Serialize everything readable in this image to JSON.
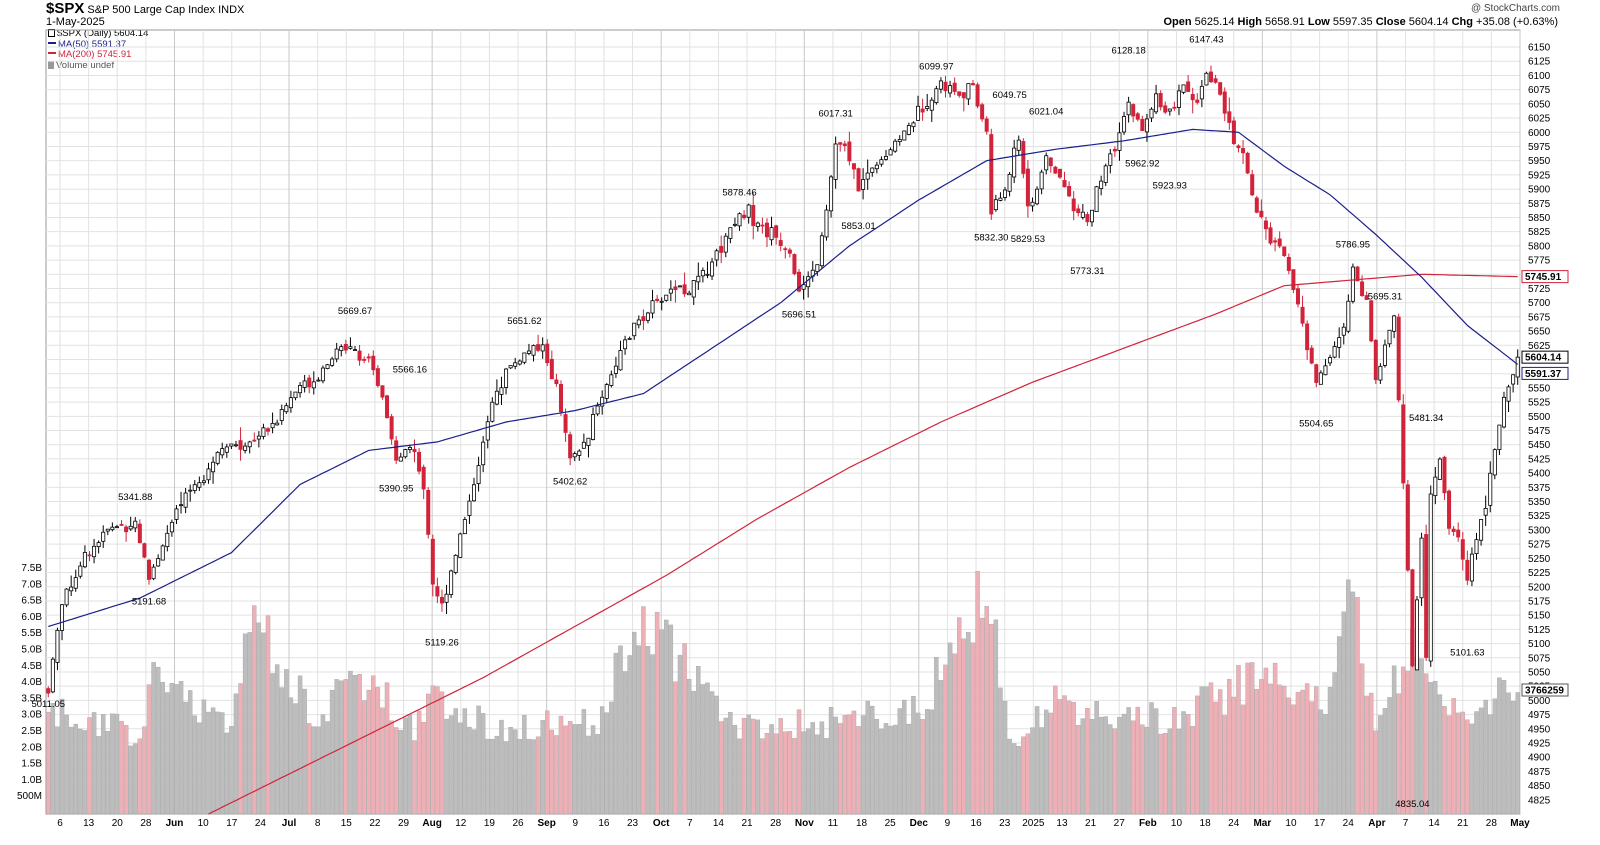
{
  "header": {
    "symbol": "$SPX",
    "name": "S&P 500 Large Cap Index",
    "exchange": "INDX",
    "date": "1-May-2025",
    "watermark": "@ StockCharts.com",
    "ohlc": {
      "open_label": "Open",
      "open": "5625.14",
      "high_label": "High",
      "high": "5658.91",
      "low_label": "Low",
      "low": "5597.35",
      "close_label": "Close",
      "close": "5604.14",
      "chg_label": "Chg",
      "chg": "+35.08 (+0.63%)"
    }
  },
  "legend": {
    "price": "$SPX (Daily) 5604.14",
    "ma50": "MA(50) 5591.37",
    "ma200": "MA(200) 5745.91",
    "volume": "Volume undef"
  },
  "colors": {
    "up": "#ffffff",
    "down": "#d1233a",
    "ma50": "#1b1f8a",
    "ma200": "#d1233a",
    "vol_up": "#bdbdbd",
    "vol_down": "#eeb0b7",
    "grid": "#e2e2e2"
  },
  "chart_data": {
    "type": "candlestick",
    "title": "$SPX S&P 500 Large Cap Index INDX",
    "ylim": [
      4800,
      6180
    ],
    "y_ticks": [
      4825,
      4850,
      4875,
      4900,
      4925,
      4950,
      4975,
      5000,
      5025,
      5050,
      5075,
      5100,
      5125,
      5150,
      5175,
      5200,
      5225,
      5250,
      5275,
      5300,
      5325,
      5350,
      5375,
      5400,
      5425,
      5450,
      5475,
      5500,
      5525,
      5550,
      5575,
      5600,
      5625,
      5650,
      5675,
      5700,
      5725,
      5750,
      5775,
      5800,
      5825,
      5850,
      5875,
      5900,
      5925,
      5950,
      5975,
      6000,
      6025,
      6050,
      6075,
      6100,
      6125,
      6150
    ],
    "volume_ticks": [
      "500M",
      "1.0B",
      "1.5B",
      "2.0B",
      "2.5B",
      "3.0B",
      "3.5B",
      "4.0B",
      "4.5B",
      "5.0B",
      "5.5B",
      "6.0B",
      "6.5B",
      "7.0B",
      "7.5B"
    ],
    "x_labels": [
      "6",
      "13",
      "20",
      "28",
      "Jun",
      "10",
      "17",
      "24",
      "Jul",
      "8",
      "15",
      "22",
      "29",
      "Aug",
      "12",
      "19",
      "26",
      "Sep",
      "9",
      "16",
      "23",
      "Oct",
      "7",
      "14",
      "21",
      "28",
      "Nov",
      "11",
      "18",
      "25",
      "Dec",
      "9",
      "16",
      "23",
      "2025",
      "13",
      "21",
      "27",
      "Feb",
      "10",
      "18",
      "24",
      "Mar",
      "10",
      "17",
      "24",
      "Apr",
      "7",
      "14",
      "21",
      "28",
      "May"
    ],
    "right_labels": {
      "ma200": "5745.91",
      "close": "5604.14",
      "ma50": "5591.37",
      "volume": "3766259"
    },
    "annotations": [
      {
        "text": "5011.05",
        "x": 0,
        "y": 5011.05,
        "pos": "below"
      },
      {
        "text": "5191.68",
        "x": 22,
        "y": 5191.68,
        "pos": "below"
      },
      {
        "text": "5341.88",
        "x": 19,
        "y": 5341.88,
        "pos": "above"
      },
      {
        "text": "5669.67",
        "x": 67,
        "y": 5669.67,
        "pos": "above"
      },
      {
        "text": "5566.16",
        "x": 79,
        "y": 5566.16,
        "pos": "above"
      },
      {
        "text": "5390.95",
        "x": 76,
        "y": 5390.95,
        "pos": "below"
      },
      {
        "text": "5119.26",
        "x": 86,
        "y": 5119.26,
        "pos": "below"
      },
      {
        "text": "5651.62",
        "x": 104,
        "y": 5651.62,
        "pos": "above"
      },
      {
        "text": "5402.62",
        "x": 114,
        "y": 5402.62,
        "pos": "below"
      },
      {
        "text": "5878.46",
        "x": 151,
        "y": 5878.46,
        "pos": "above"
      },
      {
        "text": "5696.51",
        "x": 164,
        "y": 5696.51,
        "pos": "below"
      },
      {
        "text": "6017.31",
        "x": 172,
        "y": 6017.31,
        "pos": "above"
      },
      {
        "text": "5853.01",
        "x": 177,
        "y": 5853.01,
        "pos": "below"
      },
      {
        "text": "6099.97",
        "x": 194,
        "y": 6099.97,
        "pos": "above"
      },
      {
        "text": "6049.75",
        "x": 210,
        "y": 6049.75,
        "pos": "above"
      },
      {
        "text": "5832.30",
        "x": 206,
        "y": 5832.3,
        "pos": "below"
      },
      {
        "text": "6021.04",
        "x": 218,
        "y": 6021.04,
        "pos": "above"
      },
      {
        "text": "5829.53",
        "x": 214,
        "y": 5829.53,
        "pos": "below"
      },
      {
        "text": "5773.31",
        "x": 227,
        "y": 5773.31,
        "pos": "below"
      },
      {
        "text": "6128.18",
        "x": 236,
        "y": 6128.18,
        "pos": "above"
      },
      {
        "text": "5962.92",
        "x": 239,
        "y": 5962.92,
        "pos": "below"
      },
      {
        "text": "5923.93",
        "x": 245,
        "y": 5923.93,
        "pos": "below"
      },
      {
        "text": "6147.43",
        "x": 253,
        "y": 6147.43,
        "pos": "above"
      },
      {
        "text": "5504.65",
        "x": 277,
        "y": 5504.65,
        "pos": "below"
      },
      {
        "text": "5786.95",
        "x": 285,
        "y": 5786.95,
        "pos": "above"
      },
      {
        "text": "5695.31",
        "x": 292,
        "y": 5695.31,
        "pos": "above"
      },
      {
        "text": "5481.34",
        "x": 301,
        "y": 5481.34,
        "pos": "above"
      },
      {
        "text": "4835.04",
        "x": 298,
        "y": 4835.04,
        "pos": "below"
      },
      {
        "text": "5101.63",
        "x": 310,
        "y": 5101.63,
        "pos": "below"
      }
    ],
    "anchors": [
      [
        0,
        5020
      ],
      [
        3,
        5175
      ],
      [
        8,
        5255
      ],
      [
        13,
        5300
      ],
      [
        19,
        5315
      ],
      [
        22,
        5215
      ],
      [
        25,
        5275
      ],
      [
        28,
        5330
      ],
      [
        31,
        5370
      ],
      [
        35,
        5410
      ],
      [
        38,
        5450
      ],
      [
        42,
        5445
      ],
      [
        46,
        5470
      ],
      [
        50,
        5495
      ],
      [
        55,
        5555
      ],
      [
        58,
        5565
      ],
      [
        62,
        5605
      ],
      [
        66,
        5630
      ],
      [
        70,
        5590
      ],
      [
        73,
        5535
      ],
      [
        76,
        5420
      ],
      [
        79,
        5450
      ],
      [
        82,
        5380
      ],
      [
        84,
        5210
      ],
      [
        86,
        5165
      ],
      [
        88,
        5230
      ],
      [
        91,
        5320
      ],
      [
        94,
        5420
      ],
      [
        97,
        5520
      ],
      [
        100,
        5580
      ],
      [
        104,
        5610
      ],
      [
        108,
        5620
      ],
      [
        111,
        5550
      ],
      [
        114,
        5420
      ],
      [
        117,
        5450
      ],
      [
        121,
        5540
      ],
      [
        125,
        5610
      ],
      [
        129,
        5670
      ],
      [
        133,
        5700
      ],
      [
        137,
        5730
      ],
      [
        140,
        5720
      ],
      [
        143,
        5750
      ],
      [
        147,
        5800
      ],
      [
        150,
        5850
      ],
      [
        153,
        5860
      ],
      [
        156,
        5830
      ],
      [
        159,
        5815
      ],
      [
        162,
        5790
      ],
      [
        164,
        5720
      ],
      [
        166,
        5735
      ],
      [
        168,
        5770
      ],
      [
        170,
        5860
      ],
      [
        172,
        5980
      ],
      [
        175,
        5960
      ],
      [
        177,
        5900
      ],
      [
        180,
        5940
      ],
      [
        183,
        5960
      ],
      [
        186,
        5990
      ],
      [
        189,
        6020
      ],
      [
        192,
        6060
      ],
      [
        195,
        6085
      ],
      [
        199,
        6070
      ],
      [
        202,
        6075
      ],
      [
        205,
        6000
      ],
      [
        206,
        5860
      ],
      [
        209,
        5900
      ],
      [
        212,
        5990
      ],
      [
        214,
        5870
      ],
      [
        216,
        5900
      ],
      [
        218,
        5950
      ],
      [
        221,
        5920
      ],
      [
        224,
        5870
      ],
      [
        227,
        5840
      ],
      [
        230,
        5920
      ],
      [
        233,
        5970
      ],
      [
        236,
        6050
      ],
      [
        239,
        6000
      ],
      [
        242,
        6060
      ],
      [
        245,
        6030
      ],
      [
        248,
        6080
      ],
      [
        251,
        6050
      ],
      [
        253,
        6100
      ],
      [
        256,
        6070
      ],
      [
        259,
        5980
      ],
      [
        261,
        5960
      ],
      [
        264,
        5860
      ],
      [
        267,
        5810
      ],
      [
        270,
        5780
      ],
      [
        273,
        5700
      ],
      [
        275,
        5620
      ],
      [
        277,
        5560
      ],
      [
        280,
        5610
      ],
      [
        283,
        5650
      ],
      [
        285,
        5760
      ],
      [
        288,
        5700
      ],
      [
        290,
        5560
      ],
      [
        292,
        5630
      ],
      [
        294,
        5670
      ],
      [
        296,
        5390
      ],
      [
        298,
        5060
      ],
      [
        300,
        5280
      ],
      [
        301,
        5070
      ],
      [
        302,
        5370
      ],
      [
        304,
        5420
      ],
      [
        306,
        5310
      ],
      [
        308,
        5280
      ],
      [
        310,
        5210
      ],
      [
        312,
        5290
      ],
      [
        314,
        5350
      ],
      [
        316,
        5450
      ],
      [
        318,
        5530
      ],
      [
        320,
        5565
      ],
      [
        321,
        5604.14
      ]
    ],
    "ma50_anchors": [
      [
        0,
        5130
      ],
      [
        20,
        5180
      ],
      [
        40,
        5260
      ],
      [
        55,
        5380
      ],
      [
        70,
        5440
      ],
      [
        85,
        5455
      ],
      [
        100,
        5490
      ],
      [
        115,
        5510
      ],
      [
        130,
        5540
      ],
      [
        145,
        5620
      ],
      [
        160,
        5700
      ],
      [
        175,
        5800
      ],
      [
        190,
        5880
      ],
      [
        205,
        5950
      ],
      [
        220,
        5970
      ],
      [
        235,
        5985
      ],
      [
        250,
        6005
      ],
      [
        260,
        6000
      ],
      [
        270,
        5940
      ],
      [
        280,
        5890
      ],
      [
        290,
        5820
      ],
      [
        300,
        5745
      ],
      [
        310,
        5660
      ],
      [
        321,
        5591.37
      ]
    ],
    "ma200_anchors": [
      [
        35,
        4800
      ],
      [
        55,
        4880
      ],
      [
        75,
        4960
      ],
      [
        95,
        5040
      ],
      [
        115,
        5130
      ],
      [
        135,
        5220
      ],
      [
        155,
        5320
      ],
      [
        175,
        5410
      ],
      [
        195,
        5490
      ],
      [
        215,
        5560
      ],
      [
        235,
        5620
      ],
      [
        255,
        5680
      ],
      [
        270,
        5730
      ],
      [
        285,
        5740
      ],
      [
        300,
        5750
      ],
      [
        321,
        5745.91
      ]
    ],
    "volume_anchors": [
      [
        0,
        3.2
      ],
      [
        20,
        2.5
      ],
      [
        22,
        4.2
      ],
      [
        40,
        3.0
      ],
      [
        45,
        6.1
      ],
      [
        60,
        2.7
      ],
      [
        65,
        4.7
      ],
      [
        80,
        2.8
      ],
      [
        85,
        3.6
      ],
      [
        100,
        2.6
      ],
      [
        120,
        3.0
      ],
      [
        130,
        6.3
      ],
      [
        150,
        2.7
      ],
      [
        170,
        2.9
      ],
      [
        190,
        3.2
      ],
      [
        205,
        7.2
      ],
      [
        210,
        2.2
      ],
      [
        220,
        3.5
      ],
      [
        240,
        3.0
      ],
      [
        245,
        3.0
      ],
      [
        265,
        4.3
      ],
      [
        280,
        3.6
      ],
      [
        285,
        7.1
      ],
      [
        290,
        2.8
      ],
      [
        298,
        5.5
      ],
      [
        302,
        4.8
      ],
      [
        305,
        3.0
      ],
      [
        320,
        3.8
      ]
    ]
  }
}
